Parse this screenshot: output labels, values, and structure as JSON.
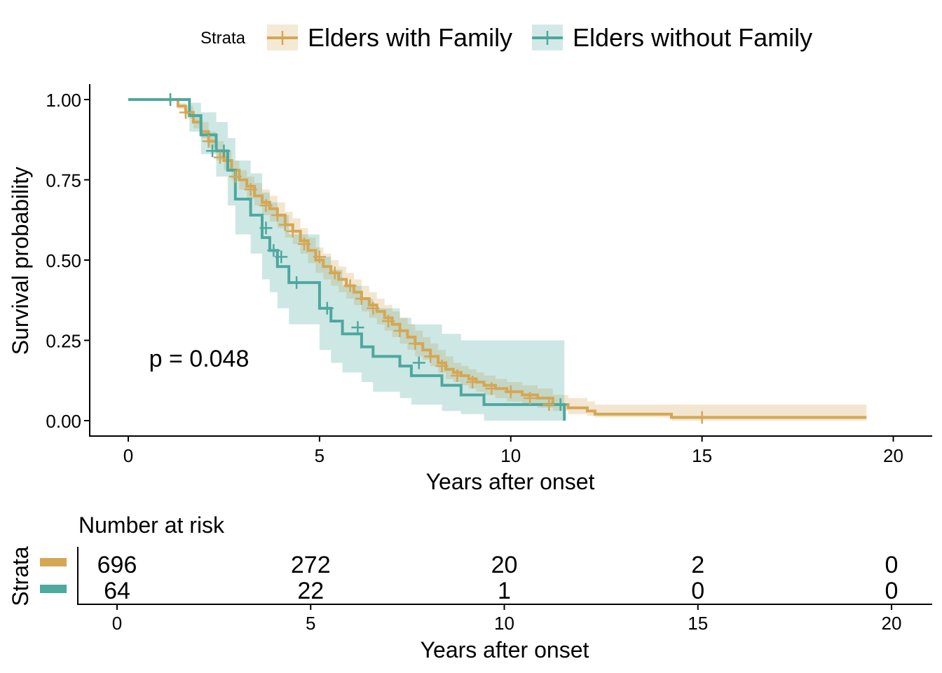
{
  "legend": {
    "title": "Strata",
    "items": [
      {
        "label": "Elders with Family",
        "color": "#D4A755"
      },
      {
        "label": "Elders without Family",
        "color": "#4DA89E"
      }
    ]
  },
  "pvalue": "p = 0.048",
  "chart_data": [
    {
      "type": "line",
      "subtype": "kaplan-meier survival curve with confidence bands",
      "xlabel": "Years after onset",
      "ylabel": "Survival probability",
      "xlim": [
        0,
        20
      ],
      "ylim": [
        0,
        1
      ],
      "xticks": [
        "0",
        "5",
        "10",
        "15",
        "20"
      ],
      "yticks": [
        "0.00",
        "0.25",
        "0.50",
        "0.75",
        "1.00"
      ],
      "grid": false,
      "legend_position": "top",
      "series": [
        {
          "name": "Elders with Family",
          "color": "#D4A755",
          "x": [
            0,
            1.1,
            1.3,
            1.5,
            1.7,
            1.9,
            2.1,
            2.3,
            2.5,
            2.7,
            2.9,
            3.1,
            3.3,
            3.5,
            3.7,
            3.9,
            4.1,
            4.3,
            4.5,
            4.7,
            4.9,
            5.1,
            5.3,
            5.5,
            5.7,
            5.9,
            6.1,
            6.3,
            6.5,
            6.7,
            6.9,
            7.1,
            7.3,
            7.5,
            7.7,
            7.9,
            8.1,
            8.3,
            8.5,
            8.7,
            8.9,
            9.1,
            9.3,
            9.6,
            9.9,
            10.3,
            10.7,
            11.1,
            11.5,
            12.0,
            12.2,
            14.2,
            19.3
          ],
          "y": [
            1.0,
            1.0,
            0.98,
            0.96,
            0.93,
            0.9,
            0.87,
            0.84,
            0.81,
            0.78,
            0.75,
            0.73,
            0.7,
            0.68,
            0.66,
            0.64,
            0.61,
            0.59,
            0.56,
            0.53,
            0.5,
            0.48,
            0.46,
            0.44,
            0.42,
            0.4,
            0.38,
            0.36,
            0.34,
            0.32,
            0.3,
            0.28,
            0.26,
            0.24,
            0.22,
            0.2,
            0.18,
            0.16,
            0.15,
            0.14,
            0.13,
            0.12,
            0.11,
            0.1,
            0.09,
            0.08,
            0.07,
            0.05,
            0.04,
            0.03,
            0.02,
            0.01,
            0.01
          ],
          "lower": [
            1.0,
            1.0,
            0.97,
            0.94,
            0.91,
            0.88,
            0.85,
            0.81,
            0.78,
            0.75,
            0.72,
            0.69,
            0.67,
            0.64,
            0.62,
            0.6,
            0.57,
            0.55,
            0.52,
            0.49,
            0.46,
            0.44,
            0.42,
            0.4,
            0.38,
            0.36,
            0.34,
            0.32,
            0.3,
            0.28,
            0.26,
            0.24,
            0.22,
            0.2,
            0.19,
            0.17,
            0.15,
            0.13,
            0.12,
            0.11,
            0.1,
            0.09,
            0.08,
            0.07,
            0.06,
            0.05,
            0.04,
            0.03,
            0.02,
            0.015,
            0.01,
            0.0,
            0.0
          ],
          "upper": [
            1.0,
            1.0,
            0.99,
            0.98,
            0.95,
            0.93,
            0.9,
            0.87,
            0.84,
            0.81,
            0.78,
            0.76,
            0.74,
            0.72,
            0.7,
            0.68,
            0.65,
            0.63,
            0.6,
            0.57,
            0.54,
            0.52,
            0.5,
            0.48,
            0.46,
            0.44,
            0.42,
            0.4,
            0.38,
            0.36,
            0.34,
            0.32,
            0.3,
            0.28,
            0.26,
            0.24,
            0.22,
            0.2,
            0.18,
            0.17,
            0.16,
            0.15,
            0.14,
            0.13,
            0.12,
            0.11,
            0.1,
            0.08,
            0.07,
            0.06,
            0.05,
            0.05,
            0.05
          ],
          "censor_x": [
            1.1,
            1.5,
            2.1,
            2.4,
            2.8,
            3.2,
            3.6,
            3.9,
            4.1,
            4.3,
            4.6,
            5.0,
            5.4,
            5.8,
            6.1,
            6.4,
            6.8,
            7.1,
            7.5,
            7.9,
            8.2,
            8.6,
            9.0,
            9.5,
            10.0,
            10.5,
            11.0,
            15.0
          ],
          "censor_y": [
            1.0,
            0.96,
            0.87,
            0.82,
            0.76,
            0.72,
            0.67,
            0.64,
            0.61,
            0.59,
            0.55,
            0.51,
            0.46,
            0.42,
            0.38,
            0.35,
            0.31,
            0.28,
            0.24,
            0.2,
            0.17,
            0.14,
            0.12,
            0.1,
            0.09,
            0.07,
            0.05,
            0.01
          ]
        },
        {
          "name": "Elders without Family",
          "color": "#4DA89E",
          "x": [
            0,
            1.2,
            1.6,
            1.9,
            2.3,
            2.6,
            2.8,
            3.2,
            3.5,
            3.7,
            3.9,
            4.2,
            5.0,
            5.3,
            5.6,
            6.1,
            6.4,
            7.1,
            7.4,
            8.2,
            8.7,
            9.3,
            11.4
          ],
          "y": [
            1.0,
            1.0,
            0.95,
            0.89,
            0.84,
            0.78,
            0.69,
            0.64,
            0.57,
            0.53,
            0.48,
            0.43,
            0.35,
            0.31,
            0.27,
            0.23,
            0.2,
            0.17,
            0.14,
            0.11,
            0.08,
            0.05,
            0.0
          ],
          "lower": [
            1.0,
            1.0,
            0.9,
            0.83,
            0.76,
            0.67,
            0.58,
            0.52,
            0.44,
            0.4,
            0.35,
            0.3,
            0.22,
            0.18,
            0.15,
            0.12,
            0.09,
            0.07,
            0.05,
            0.03,
            0.02,
            0.0,
            0.0
          ],
          "upper": [
            1.0,
            1.0,
            0.99,
            0.96,
            0.93,
            0.88,
            0.81,
            0.77,
            0.71,
            0.68,
            0.64,
            0.58,
            0.51,
            0.47,
            0.42,
            0.38,
            0.35,
            0.32,
            0.3,
            0.27,
            0.25,
            0.25,
            0.25
          ],
          "censor_x": [
            1.1,
            2.2,
            2.5,
            3.6,
            3.8,
            4.0,
            4.4,
            5.2,
            6.0,
            7.6,
            11.3
          ],
          "censor_y": [
            1.0,
            0.84,
            0.84,
            0.6,
            0.53,
            0.51,
            0.43,
            0.35,
            0.29,
            0.18,
            0.05
          ]
        }
      ]
    },
    {
      "type": "table",
      "title": "Number at risk",
      "ylabel": "Strata",
      "xlabel": "Years after onset",
      "xticks": [
        "0",
        "5",
        "10",
        "15",
        "20"
      ],
      "time_points": [
        0,
        5,
        10,
        15,
        20
      ],
      "rows": [
        {
          "name": "Elders with Family",
          "color": "#D4A755",
          "values": [
            "696",
            "272",
            "20",
            "2",
            "0"
          ]
        },
        {
          "name": "Elders without Family",
          "color": "#4DA89E",
          "values": [
            "64",
            "22",
            "1",
            "0",
            "0"
          ]
        }
      ]
    }
  ]
}
